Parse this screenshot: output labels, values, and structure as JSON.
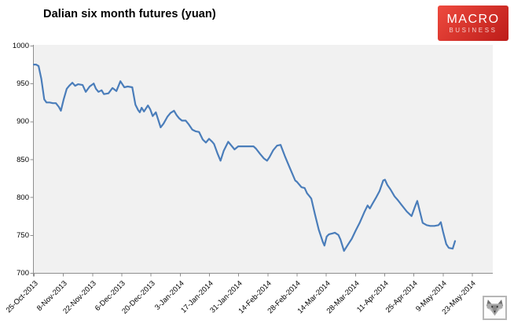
{
  "header": {
    "title": "Dalian six month futures (yuan)",
    "logo": {
      "line1": "MACRO",
      "line2": "BUSINESS",
      "bg_top": "#ee4a3e",
      "bg_bottom": "#bd1c19",
      "text_color": "#ffffff"
    }
  },
  "footer": {
    "wolf_icon": "wolf-logo-icon"
  },
  "chart_data": {
    "type": "line",
    "title": "Dalian six month futures (yuan)",
    "series_name": "Dalian six month futures",
    "unit": "yuan",
    "line_color": "#4a7dba",
    "plot_bg": "#f1f1f1",
    "axis_color": "#8e8e8e",
    "label_color": "#000000",
    "grid": false,
    "legend": false,
    "ylim": [
      700,
      1000
    ],
    "y_ticks": [
      1000,
      950,
      900,
      850,
      800,
      750,
      700
    ],
    "x_tick_labels": [
      "25-Oct-2013",
      "8-Nov-2013",
      "22-Nov-2013",
      "6-Dec-2013",
      "20-Dec-2013",
      "3-Jan-2014",
      "17-Jan-2014",
      "31-Jan-2014",
      "14-Feb-2014",
      "28-Feb-2014",
      "14-Mar-2014",
      "28-Mar-2014",
      "11-Apr-2014",
      "25-Apr-2014",
      "9-May-2014",
      "23-May-2014"
    ],
    "days_per_tick": 14,
    "xlim_days": [
      0,
      220
    ],
    "points_format": "[day_offset_from_25-Oct-2013, price_yuan]",
    "points": [
      [
        0,
        975
      ],
      [
        1.1,
        975
      ],
      [
        2.3,
        973
      ],
      [
        3.6,
        956
      ],
      [
        5,
        929
      ],
      [
        6.1,
        925
      ],
      [
        7.6,
        925
      ],
      [
        9.1,
        924
      ],
      [
        10.6,
        924
      ],
      [
        12,
        919
      ],
      [
        13,
        914
      ],
      [
        14.3,
        929
      ],
      [
        15.8,
        943
      ],
      [
        17,
        947
      ],
      [
        18.5,
        951
      ],
      [
        19.8,
        947
      ],
      [
        21.2,
        949
      ],
      [
        23.4,
        948
      ],
      [
        24.9,
        939
      ],
      [
        26.8,
        946
      ],
      [
        28.7,
        950
      ],
      [
        29.8,
        943
      ],
      [
        31,
        939
      ],
      [
        32.5,
        941
      ],
      [
        33.6,
        936
      ],
      [
        35.8,
        937
      ],
      [
        37.7,
        944
      ],
      [
        39.6,
        940
      ],
      [
        41.5,
        953
      ],
      [
        43.4,
        945
      ],
      [
        45,
        946
      ],
      [
        47.2,
        945
      ],
      [
        48.7,
        922
      ],
      [
        50,
        915
      ],
      [
        50.8,
        912
      ],
      [
        51.7,
        918
      ],
      [
        52.8,
        913
      ],
      [
        54.7,
        921
      ],
      [
        55.8,
        916
      ],
      [
        57,
        907
      ],
      [
        58.5,
        912
      ],
      [
        60.8,
        892
      ],
      [
        62.2,
        897
      ],
      [
        64,
        906
      ],
      [
        65.5,
        911
      ],
      [
        67.2,
        914
      ],
      [
        68.5,
        908
      ],
      [
        69.7,
        904
      ],
      [
        71,
        901
      ],
      [
        72.8,
        901
      ],
      [
        74.3,
        896
      ],
      [
        76,
        889
      ],
      [
        77.5,
        887
      ],
      [
        79.2,
        886
      ],
      [
        81,
        876
      ],
      [
        82.5,
        872
      ],
      [
        84,
        877
      ],
      [
        85.5,
        873
      ],
      [
        86.4,
        870
      ],
      [
        88,
        858
      ],
      [
        89.5,
        848
      ],
      [
        91,
        861
      ],
      [
        93.2,
        873
      ],
      [
        96.2,
        863
      ],
      [
        98,
        867
      ],
      [
        102,
        867
      ],
      [
        105.3,
        867
      ],
      [
        106.5,
        864
      ],
      [
        108.5,
        857
      ],
      [
        110.3,
        851
      ],
      [
        111.8,
        848
      ],
      [
        113,
        853
      ],
      [
        114.8,
        862
      ],
      [
        116.6,
        868
      ],
      [
        118.3,
        869
      ],
      [
        120.5,
        853
      ],
      [
        122.8,
        838
      ],
      [
        125.3,
        822
      ],
      [
        126.2,
        820
      ],
      [
        128.3,
        813
      ],
      [
        129.8,
        812
      ],
      [
        131,
        805
      ],
      [
        132.2,
        801
      ],
      [
        133,
        798
      ],
      [
        134.8,
        777
      ],
      [
        136.6,
        757
      ],
      [
        138.5,
        741
      ],
      [
        139.3,
        736
      ],
      [
        140.4,
        748
      ],
      [
        141.5,
        751
      ],
      [
        143,
        752
      ],
      [
        144.3,
        753
      ],
      [
        146,
        750
      ],
      [
        147,
        744
      ],
      [
        148.7,
        729
      ],
      [
        150.5,
        737
      ],
      [
        152.4,
        745
      ],
      [
        154.3,
        756
      ],
      [
        156.2,
        766
      ],
      [
        158.4,
        780
      ],
      [
        160,
        789
      ],
      [
        161.1,
        785
      ],
      [
        162.3,
        791
      ],
      [
        164,
        799
      ],
      [
        165.7,
        808
      ],
      [
        167.5,
        822
      ],
      [
        168.3,
        823
      ],
      [
        169.5,
        816
      ],
      [
        171,
        810
      ],
      [
        172.9,
        801
      ],
      [
        174.5,
        796
      ],
      [
        176.2,
        790
      ],
      [
        178.8,
        781
      ],
      [
        181.1,
        775
      ],
      [
        182.5,
        786
      ],
      [
        183.8,
        795
      ],
      [
        186.4,
        766
      ],
      [
        188.3,
        763
      ],
      [
        190,
        762
      ],
      [
        192,
        762
      ],
      [
        194,
        763
      ],
      [
        195.1,
        767
      ],
      [
        196.2,
        754
      ],
      [
        197.7,
        738
      ],
      [
        198.9,
        733
      ],
      [
        200.8,
        732
      ],
      [
        201.9,
        742
      ]
    ]
  }
}
